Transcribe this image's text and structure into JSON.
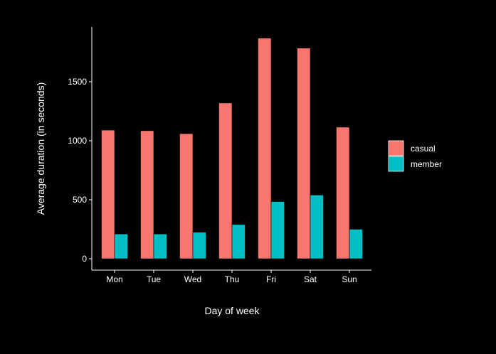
{
  "chart_data": {
    "type": "bar",
    "title": "",
    "xlabel": "Day of week",
    "ylabel": "Average duration (in seconds)",
    "categories": [
      "Mon",
      "Tue",
      "Wed",
      "Thu",
      "Fri",
      "Sat",
      "Sun"
    ],
    "series": [
      {
        "name": "casual",
        "color": "#F8766D",
        "values": [
          1090,
          1085,
          1060,
          1320,
          1870,
          1785,
          1115
        ]
      },
      {
        "name": "member",
        "color": "#00BFC4",
        "values": [
          210,
          210,
          225,
          290,
          485,
          540,
          250
        ]
      }
    ],
    "y_ticks": [
      0,
      500,
      1000,
      1500
    ],
    "ylim": [
      0,
      1880
    ],
    "grid": false,
    "legend_position": "right",
    "background": "#000000",
    "text_color": "#ffffff"
  }
}
